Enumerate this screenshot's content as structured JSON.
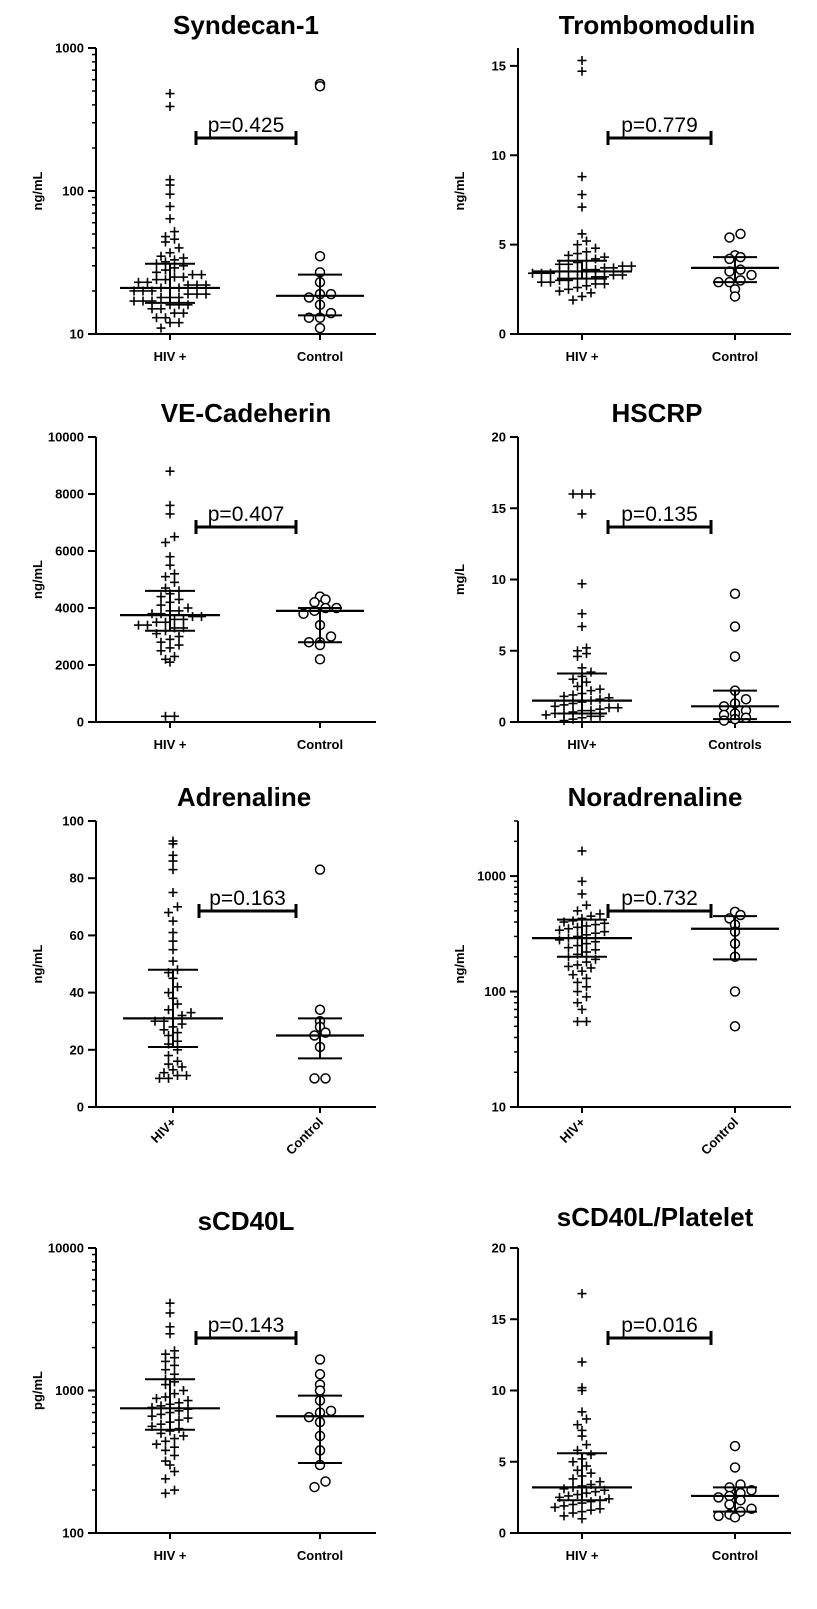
{
  "chart_data": [
    {
      "type": "scatter",
      "title": "Syndecan-1",
      "ylabel": "ng/mL",
      "yscale": "log",
      "ylim": [
        10,
        1000
      ],
      "yticks": [
        10,
        100,
        1000
      ],
      "categories": [
        "HIV +",
        "Control"
      ],
      "pvalue": "p=0.425",
      "series": [
        {
          "values": [
            480,
            390,
            120,
            110,
            95,
            78,
            64,
            52,
            48,
            46,
            44,
            40,
            37,
            35,
            34,
            33,
            32,
            31,
            30,
            29,
            28,
            27,
            26,
            26,
            25,
            25,
            24,
            24,
            23,
            23,
            22,
            22,
            22,
            21,
            21,
            21,
            20,
            20,
            20,
            19,
            19,
            19,
            18,
            18,
            18,
            17,
            17,
            17,
            16,
            16,
            16,
            15,
            15,
            14,
            14,
            13,
            13,
            12,
            12,
            11
          ],
          "median": 21,
          "q1": 16.5,
          "q3": 31
        },
        {
          "values": [
            560,
            540,
            35,
            27,
            23,
            19,
            19,
            18,
            16,
            14,
            13,
            13,
            11
          ],
          "median": 18.5,
          "q1": 13.5,
          "q3": 26
        }
      ]
    },
    {
      "type": "scatter",
      "title": "Trombomodulin",
      "ylabel": "ng/mL",
      "yscale": "linear",
      "ylim": [
        0,
        16
      ],
      "yticks": [
        0,
        5,
        10,
        15
      ],
      "categories": [
        "HIV +",
        "Control"
      ],
      "pvalue": "p=0.779",
      "series": [
        {
          "values": [
            15.3,
            14.7,
            8.8,
            7.8,
            7.1,
            5.6,
            5.2,
            5.0,
            4.8,
            4.6,
            4.5,
            4.4,
            4.3,
            4.2,
            4.1,
            4.0,
            3.9,
            3.9,
            3.8,
            3.8,
            3.7,
            3.7,
            3.6,
            3.6,
            3.5,
            3.5,
            3.5,
            3.4,
            3.4,
            3.4,
            3.3,
            3.3,
            3.2,
            3.2,
            3.1,
            3.1,
            3.0,
            3.0,
            2.9,
            2.9,
            2.8,
            2.8,
            2.7,
            2.6,
            2.5,
            2.4,
            2.3,
            2.1,
            1.9
          ],
          "median": 3.5,
          "q1": 3.1,
          "q3": 4.1
        },
        {
          "values": [
            5.6,
            5.4,
            4.4,
            4.3,
            4.2,
            3.6,
            3.5,
            3.3,
            3.0,
            2.9,
            2.9,
            2.5,
            2.1
          ],
          "median": 3.7,
          "q1": 2.9,
          "q3": 4.3
        }
      ]
    },
    {
      "type": "scatter",
      "title": "VE-Cadeherin",
      "ylabel": "ng/mL",
      "yscale": "linear",
      "ylim": [
        0,
        10000
      ],
      "yticks": [
        0,
        2000,
        4000,
        6000,
        8000,
        10000
      ],
      "categories": [
        "HIV +",
        "Control"
      ],
      "pvalue": "p=0.407",
      "series": [
        {
          "values": [
            8800,
            7600,
            7300,
            6500,
            6300,
            5800,
            5500,
            5200,
            5100,
            4900,
            4700,
            4600,
            4500,
            4400,
            4300,
            4200,
            4100,
            4000,
            3900,
            3900,
            3800,
            3800,
            3700,
            3700,
            3600,
            3600,
            3500,
            3500,
            3400,
            3400,
            3300,
            3300,
            3200,
            3100,
            3000,
            2900,
            2800,
            2700,
            2600,
            2500,
            2300,
            2200,
            2100,
            200,
            200
          ],
          "median": 3750,
          "q1": 3200,
          "q3": 4600
        },
        {
          "values": [
            4400,
            4300,
            4200,
            4000,
            4000,
            3900,
            3800,
            3400,
            3000,
            2800,
            2800,
            2700,
            2200
          ],
          "median": 3900,
          "q1": 2800,
          "q3": 4000
        }
      ]
    },
    {
      "type": "scatter",
      "title": "HSCRP",
      "ylabel": "mg/L",
      "yscale": "linear",
      "ylim": [
        0,
        20
      ],
      "yticks": [
        0,
        5,
        10,
        15,
        20
      ],
      "categories": [
        "HIV+",
        "Controls"
      ],
      "pvalue": "p=0.135",
      "series": [
        {
          "values": [
            16,
            16,
            16,
            14.6,
            9.7,
            7.6,
            6.7,
            5.2,
            5.0,
            4.8,
            4.6,
            3.8,
            3.5,
            3.2,
            3.0,
            2.8,
            2.5,
            2.3,
            2.2,
            2.0,
            1.9,
            1.8,
            1.7,
            1.6,
            1.5,
            1.4,
            1.3,
            1.2,
            1.1,
            1.0,
            1.0,
            0.9,
            0.8,
            0.8,
            0.7,
            0.6,
            0.6,
            0.5,
            0.4,
            0.4,
            0.3,
            0.2,
            0.1
          ],
          "median": 1.5,
          "q1": 0.6,
          "q3": 3.4
        },
        {
          "values": [
            9.0,
            6.7,
            4.6,
            2.2,
            1.6,
            1.3,
            1.1,
            0.8,
            0.6,
            0.5,
            0.3,
            0.2,
            0.1
          ],
          "median": 1.1,
          "q1": 0.2,
          "q3": 2.2
        }
      ]
    },
    {
      "type": "scatter",
      "title": "Adrenaline",
      "ylabel": "ng/mL",
      "yscale": "linear",
      "ylim": [
        0,
        100
      ],
      "yticks": [
        0,
        20,
        40,
        60,
        80,
        100
      ],
      "categories": [
        "HIV+",
        "Control"
      ],
      "pvalue": "p=0.163",
      "series": [
        {
          "values": [
            93,
            92,
            88,
            86,
            83,
            75,
            70,
            68,
            65,
            61,
            58,
            55,
            51,
            48,
            47,
            45,
            42,
            40,
            38,
            36,
            34,
            33,
            32,
            31,
            30,
            30,
            29,
            28,
            27,
            26,
            25,
            23,
            22,
            20,
            18,
            16,
            15,
            14,
            13,
            12,
            11,
            11,
            10,
            10
          ],
          "median": 31,
          "q1": 21,
          "q3": 48
        },
        {
          "values": [
            83,
            34,
            30,
            28,
            26,
            25,
            21,
            10,
            10
          ],
          "median": 25,
          "q1": 17,
          "q3": 31
        }
      ]
    },
    {
      "type": "scatter",
      "title": "Noradrenaline",
      "ylabel": "ng/mL",
      "yscale": "log",
      "ylim": [
        10,
        3000
      ],
      "yticks": [
        10,
        100,
        1000
      ],
      "categories": [
        "HIV+",
        "Control"
      ],
      "pvalue": "p=0.732",
      "series": [
        {
          "values": [
            1650,
            900,
            700,
            560,
            500,
            470,
            450,
            430,
            410,
            400,
            390,
            380,
            370,
            360,
            350,
            340,
            330,
            320,
            310,
            300,
            290,
            280,
            270,
            260,
            250,
            240,
            230,
            220,
            210,
            200,
            190,
            180,
            170,
            165,
            160,
            150,
            140,
            130,
            120,
            110,
            100,
            90,
            80,
            70,
            55,
            55
          ],
          "median": 290,
          "q1": 200,
          "q3": 420
        },
        {
          "values": [
            490,
            460,
            430,
            380,
            330,
            260,
            200,
            100,
            50
          ],
          "median": 350,
          "q1": 190,
          "q3": 450
        }
      ]
    },
    {
      "type": "scatter",
      "title": "sCD40L",
      "ylabel": "pg/mL",
      "yscale": "log",
      "ylim": [
        100,
        10000
      ],
      "yticks": [
        100,
        1000,
        10000
      ],
      "categories": [
        "HIV +",
        "Control"
      ],
      "pvalue": "p=0.143",
      "series": [
        {
          "values": [
            4100,
            3500,
            2800,
            2500,
            1900,
            1800,
            1700,
            1600,
            1500,
            1400,
            1300,
            1200,
            1150,
            1100,
            1000,
            950,
            900,
            880,
            850,
            820,
            800,
            780,
            760,
            740,
            720,
            700,
            680,
            660,
            640,
            620,
            600,
            580,
            560,
            540,
            520,
            500,
            480,
            460,
            440,
            420,
            400,
            380,
            350,
            320,
            300,
            270,
            240,
            200,
            190
          ],
          "median": 750,
          "q1": 530,
          "q3": 1200
        },
        {
          "values": [
            1650,
            1300,
            1100,
            1000,
            850,
            720,
            700,
            650,
            600,
            480,
            380,
            300,
            230,
            210
          ],
          "median": 660,
          "q1": 310,
          "q3": 920
        }
      ]
    },
    {
      "type": "scatter",
      "title": "sCD40L/Platelet",
      "ylabel": "",
      "yscale": "linear",
      "ylim": [
        0,
        20
      ],
      "yticks": [
        0,
        5,
        10,
        15,
        20
      ],
      "categories": [
        "HIV +",
        "Control"
      ],
      "pvalue": "p=0.016",
      "series": [
        {
          "values": [
            16.8,
            12.0,
            10.2,
            10.0,
            8.5,
            8.0,
            7.6,
            7.2,
            6.8,
            6.2,
            5.8,
            5.5,
            5.2,
            5.0,
            4.7,
            4.4,
            4.2,
            4.0,
            3.8,
            3.6,
            3.4,
            3.3,
            3.2,
            3.1,
            3.0,
            2.9,
            2.8,
            2.7,
            2.6,
            2.5,
            2.4,
            2.3,
            2.2,
            2.1,
            2.0,
            1.9,
            1.8,
            1.7,
            1.6,
            1.5,
            1.4,
            1.2,
            1.0
          ],
          "median": 3.2,
          "q1": 2.3,
          "q3": 5.6
        },
        {
          "values": [
            6.1,
            4.6,
            3.4,
            3.2,
            3.0,
            2.8,
            2.6,
            2.5,
            2.3,
            2.0,
            1.7,
            1.5,
            1.3,
            1.2,
            1.1
          ],
          "median": 2.6,
          "q1": 1.5,
          "q3": 3.2
        }
      ]
    }
  ]
}
